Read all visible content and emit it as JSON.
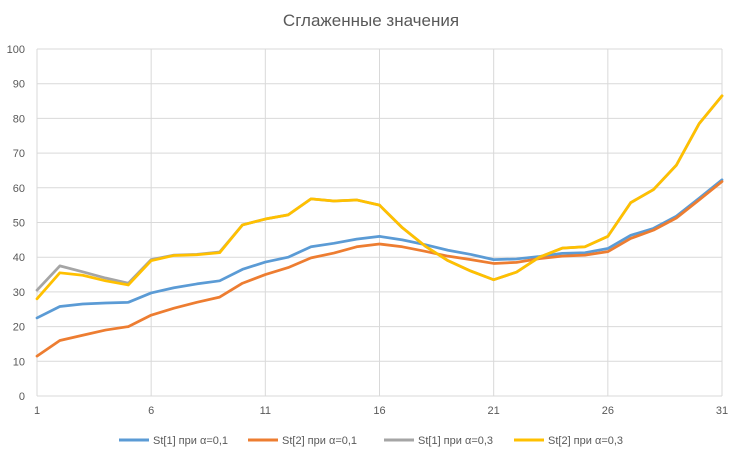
{
  "chart_data": {
    "type": "line",
    "title": "Сглаженные значения",
    "xlabel": "",
    "ylabel": "",
    "x": [
      1,
      2,
      3,
      4,
      5,
      6,
      7,
      8,
      9,
      10,
      11,
      12,
      13,
      14,
      15,
      16,
      17,
      18,
      19,
      20,
      21,
      22,
      23,
      24,
      25,
      26,
      27,
      28,
      29,
      30,
      31
    ],
    "x_tick_labels": [
      "1",
      "6",
      "11",
      "16",
      "21",
      "26",
      "31"
    ],
    "x_tick_values": [
      1,
      6,
      11,
      16,
      21,
      26,
      31
    ],
    "ylim": [
      0,
      100
    ],
    "y_tick_labels": [
      "0",
      "10",
      "20",
      "30",
      "40",
      "50",
      "60",
      "70",
      "80",
      "90",
      "100"
    ],
    "y_tick_values": [
      0,
      10,
      20,
      30,
      40,
      50,
      60,
      70,
      80,
      90,
      100
    ],
    "grid": true,
    "legend_position": "bottom",
    "series": [
      {
        "name": "St[1] при α=0,1",
        "color": "#5b9bd5",
        "values": [
          22.5,
          25.8,
          26.5,
          26.8,
          27.0,
          29.7,
          31.2,
          32.3,
          33.2,
          36.5,
          38.6,
          40.0,
          43.0,
          44.0,
          45.2,
          46.0,
          45.0,
          43.6,
          42.0,
          40.8,
          39.3,
          39.5,
          40.2,
          41.1,
          41.3,
          42.5,
          46.3,
          48.3,
          51.8,
          57.0,
          62.3
        ]
      },
      {
        "name": "St[2] при α=0,1",
        "color": "#ed7d31",
        "values": [
          11.5,
          16.0,
          17.5,
          19.0,
          20.0,
          23.3,
          25.3,
          27.0,
          28.5,
          32.5,
          35.0,
          37.0,
          39.8,
          41.2,
          43.0,
          43.8,
          43.0,
          41.7,
          40.3,
          39.3,
          38.2,
          38.5,
          39.6,
          40.3,
          40.6,
          41.6,
          45.4,
          47.8,
          51.3,
          56.5,
          61.8
        ]
      },
      {
        "name": "St[1] при α=0,3",
        "color": "#a5a5a5",
        "values": [
          30.5,
          37.5,
          35.8,
          34.0,
          32.5,
          39.3,
          40.6,
          40.8,
          41.5,
          49.3,
          51.0,
          52.2,
          56.8,
          56.2,
          56.5,
          55.0,
          48.5,
          43.2,
          39.0,
          36.0,
          33.5,
          35.7,
          40.0,
          42.6,
          43.0,
          46.0,
          55.7,
          59.5,
          66.5,
          78.5,
          86.5
        ]
      },
      {
        "name": "St[2] при α=0,3",
        "color": "#ffc000",
        "values": [
          28.0,
          35.5,
          34.8,
          33.2,
          32.0,
          39.0,
          40.5,
          40.7,
          41.3,
          49.3,
          51.0,
          52.2,
          56.8,
          56.2,
          56.5,
          55.0,
          48.5,
          43.2,
          39.0,
          36.0,
          33.5,
          35.7,
          40.0,
          42.6,
          43.0,
          46.0,
          55.7,
          59.5,
          66.5,
          78.5,
          86.5
        ]
      }
    ]
  }
}
